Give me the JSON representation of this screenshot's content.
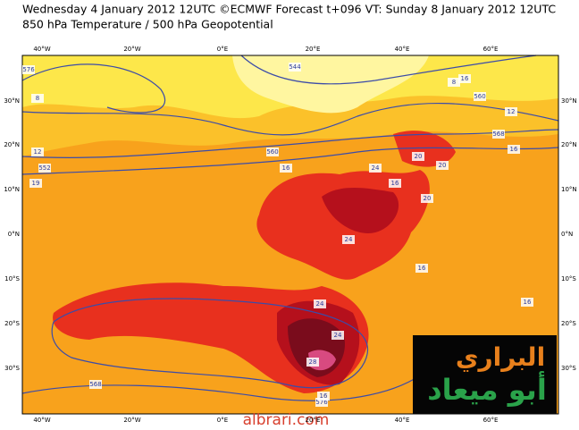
{
  "header": {
    "line1": "Wednesday 4 January 2012 12UTC ©ECMWF Forecast t+096 VT: Sunday 8 January 2012 12UTC",
    "line2": "850 hPa Temperature / 500 hPa Geopotential"
  },
  "map": {
    "longitude_labels": [
      "40°W",
      "20°W",
      "0°E",
      "20°E",
      "40°E",
      "60°E"
    ],
    "latitude_labels": [
      "30°N",
      "20°N",
      "10°N",
      "0°N",
      "10°S",
      "20°S",
      "30°S"
    ],
    "contour_labels": [
      "576",
      "8",
      "12",
      "16",
      "552",
      "560",
      "544",
      "8",
      "12",
      "568",
      "16",
      "20",
      "24",
      "20",
      "16",
      "20",
      "24",
      "24",
      "16",
      "568",
      "576",
      "16",
      "28",
      "24",
      "16",
      "560",
      "16",
      "19"
    ]
  },
  "logo": {
    "top": "البراري",
    "bottom": "أبو ميعاد"
  },
  "watermark": "albrari.com"
}
